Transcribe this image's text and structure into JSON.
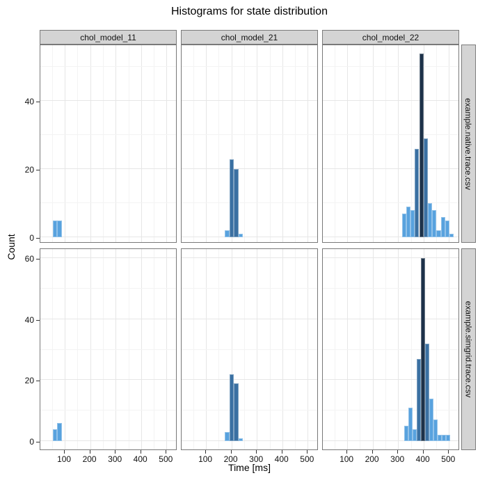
{
  "title": "Histograms for state distribution",
  "axes": {
    "x_label": "Time [ms]",
    "y_label": "Count"
  },
  "colors": {
    "bar_light": "#58a2de",
    "bar_mid": "#3a70a2",
    "bar_dark": "#1d3249",
    "strip_bg": "#d4d4d4",
    "strip_border": "#7a7a7a",
    "panel_border": "#787878",
    "grid_major": "#e6e6e6",
    "grid_minor": "#f3f3f3",
    "tick_color": "#333333"
  },
  "chart_data": {
    "type": "bar",
    "subtype": "faceted-histogram",
    "title": "Histograms for state distribution",
    "xlabel": "Time [ms]",
    "ylabel": "Count",
    "grid": true,
    "legend": null,
    "x_ticks": [
      100,
      200,
      300,
      400,
      500
    ],
    "x_minor": [
      50,
      150,
      250,
      350,
      450,
      550
    ],
    "xlim": [
      4,
      543
    ],
    "col_facets": [
      "chol_model_11",
      "chol_model_21",
      "chol_model_22"
    ],
    "row_facets": [
      "example.native.trace.csv",
      "example.simgrid.trace.csv"
    ],
    "rows": [
      {
        "facet": "example.native.trace.csv",
        "y_ticks": [
          0,
          20,
          40
        ],
        "y_minor": [
          10,
          30,
          50
        ],
        "ylim": [
          0,
          56
        ],
        "panels": [
          {
            "facet": "chol_model_11",
            "bars": [
              {
                "x0": 52,
                "x1": 70,
                "count": 5,
                "shade": "light"
              },
              {
                "x0": 70,
                "x1": 88,
                "count": 5,
                "shade": "light"
              }
            ]
          },
          {
            "facet": "chol_model_21",
            "bars": [
              {
                "x0": 174,
                "x1": 192,
                "count": 2,
                "shade": "light"
              },
              {
                "x0": 192,
                "x1": 210,
                "count": 23,
                "shade": "mid"
              },
              {
                "x0": 210,
                "x1": 228,
                "count": 20,
                "shade": "mid"
              },
              {
                "x0": 228,
                "x1": 246,
                "count": 1,
                "shade": "light"
              }
            ]
          },
          {
            "facet": "chol_model_22",
            "bars": [
              {
                "x0": 315,
                "x1": 332,
                "count": 7,
                "shade": "light"
              },
              {
                "x0": 332,
                "x1": 349,
                "count": 9,
                "shade": "light"
              },
              {
                "x0": 349,
                "x1": 366,
                "count": 8,
                "shade": "light"
              },
              {
                "x0": 366,
                "x1": 383,
                "count": 26,
                "shade": "mid"
              },
              {
                "x0": 383,
                "x1": 400,
                "count": 54,
                "shade": "dark"
              },
              {
                "x0": 400,
                "x1": 417,
                "count": 29,
                "shade": "mid"
              },
              {
                "x0": 417,
                "x1": 434,
                "count": 10,
                "shade": "light"
              },
              {
                "x0": 434,
                "x1": 451,
                "count": 8,
                "shade": "light"
              },
              {
                "x0": 451,
                "x1": 468,
                "count": 2,
                "shade": "light"
              },
              {
                "x0": 468,
                "x1": 485,
                "count": 6,
                "shade": "light"
              },
              {
                "x0": 485,
                "x1": 502,
                "count": 5,
                "shade": "light"
              },
              {
                "x0": 502,
                "x1": 519,
                "count": 1,
                "shade": "light"
              }
            ]
          }
        ]
      },
      {
        "facet": "example.simgrid.trace.csv",
        "y_ticks": [
          0,
          20,
          40,
          60
        ],
        "y_minor": [
          10,
          30,
          50
        ],
        "ylim": [
          0,
          62.5
        ],
        "panels": [
          {
            "facet": "chol_model_11",
            "bars": [
              {
                "x0": 52,
                "x1": 70,
                "count": 4,
                "shade": "light"
              },
              {
                "x0": 70,
                "x1": 88,
                "count": 6,
                "shade": "light"
              }
            ]
          },
          {
            "facet": "chol_model_21",
            "bars": [
              {
                "x0": 174,
                "x1": 192,
                "count": 3,
                "shade": "light"
              },
              {
                "x0": 192,
                "x1": 210,
                "count": 22,
                "shade": "mid"
              },
              {
                "x0": 210,
                "x1": 228,
                "count": 19,
                "shade": "mid"
              },
              {
                "x0": 228,
                "x1": 246,
                "count": 1,
                "shade": "light"
              }
            ]
          },
          {
            "facet": "chol_model_22",
            "bars": [
              {
                "x0": 324,
                "x1": 340.5,
                "count": 5,
                "shade": "light"
              },
              {
                "x0": 340.5,
                "x1": 357,
                "count": 11,
                "shade": "light"
              },
              {
                "x0": 357,
                "x1": 373.5,
                "count": 4,
                "shade": "light"
              },
              {
                "x0": 373.5,
                "x1": 390,
                "count": 27,
                "shade": "mid"
              },
              {
                "x0": 390,
                "x1": 406.5,
                "count": 60,
                "shade": "dark"
              },
              {
                "x0": 406.5,
                "x1": 423,
                "count": 32,
                "shade": "mid"
              },
              {
                "x0": 423,
                "x1": 439.5,
                "count": 14,
                "shade": "light"
              },
              {
                "x0": 439.5,
                "x1": 456,
                "count": 7,
                "shade": "light"
              },
              {
                "x0": 456,
                "x1": 472.5,
                "count": 2,
                "shade": "light"
              },
              {
                "x0": 472.5,
                "x1": 489,
                "count": 2,
                "shade": "light"
              },
              {
                "x0": 489,
                "x1": 505.5,
                "count": 2,
                "shade": "light"
              }
            ]
          }
        ]
      }
    ]
  }
}
